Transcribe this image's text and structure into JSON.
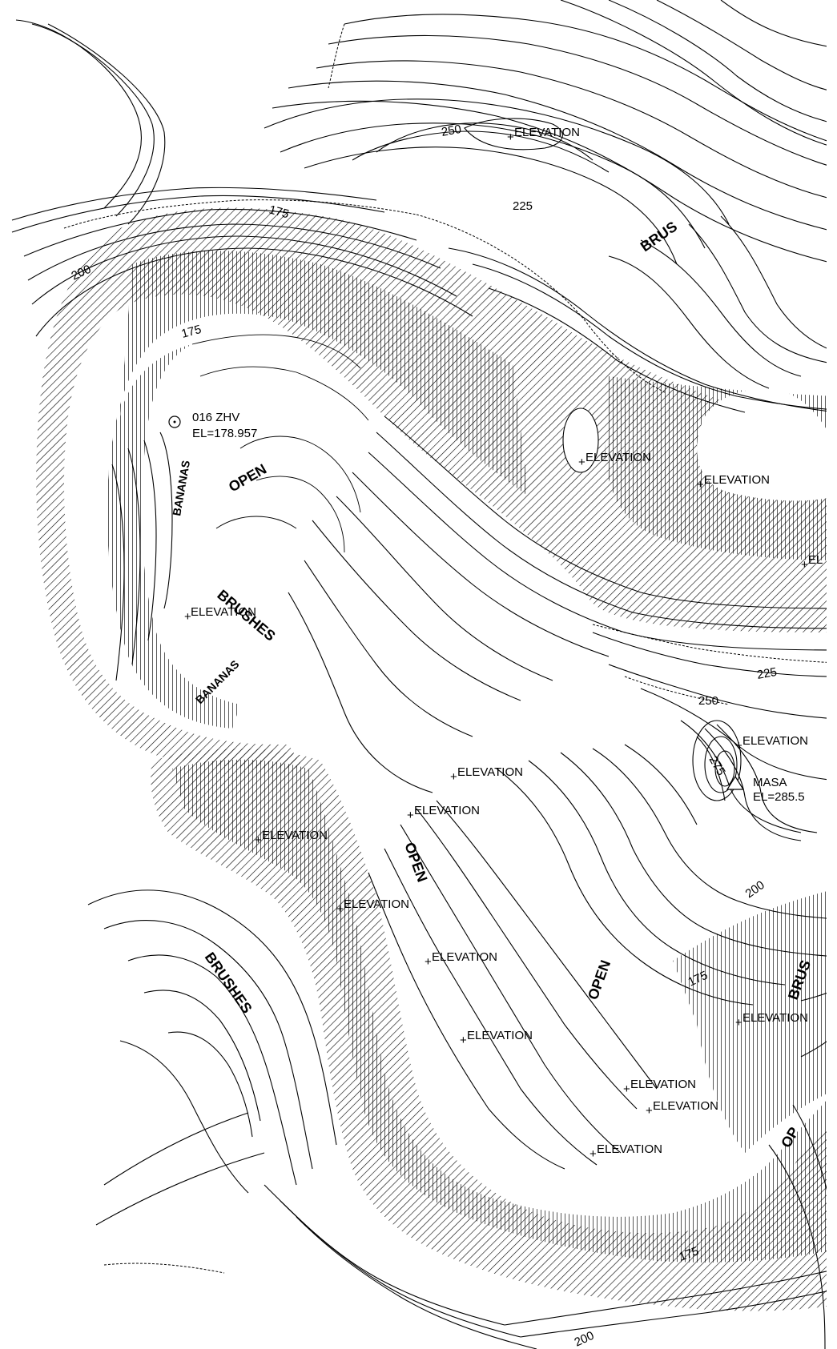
{
  "contour_labels": [
    "250",
    "225",
    "175",
    "200",
    "175",
    "225",
    "250",
    "275",
    "200",
    "175",
    "175",
    "200"
  ],
  "survey_point": {
    "id": "016 ZHV",
    "elevation": "EL=178.957"
  },
  "benchmark": {
    "name": "MASA",
    "elevation": "EL=285.5"
  },
  "elevation_label": "ELEVATION",
  "elevation_label_clipped": "EL",
  "vegetation": {
    "bananas": "BANANAS",
    "open": "OPEN",
    "brushes": "BRUSHES",
    "open_short": "OP",
    "brus": "BRUS"
  }
}
